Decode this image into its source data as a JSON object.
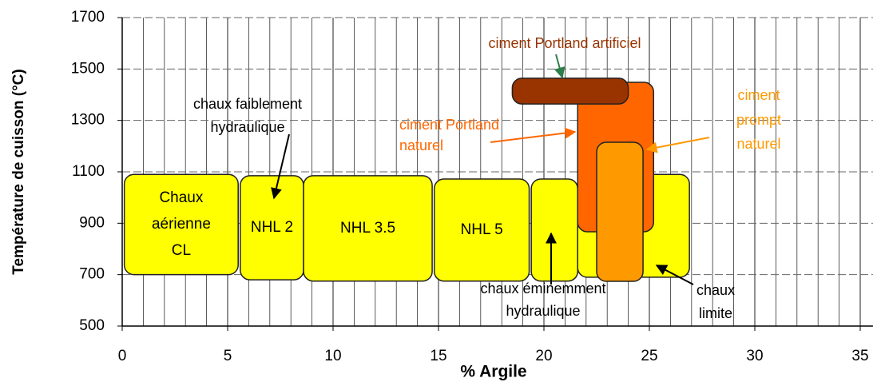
{
  "chart_data": {
    "type": "region",
    "xlabel": "% Argile",
    "ylabel": "Température de cuisson (°C)",
    "xlim": [
      0,
      35.6
    ],
    "ylim": [
      500,
      1700
    ],
    "xticks": [
      0,
      5,
      10,
      15,
      20,
      25,
      30,
      35
    ],
    "yticks": [
      500,
      700,
      900,
      1100,
      1300,
      1500,
      1700
    ],
    "xminorticks": [
      1,
      2,
      3,
      4,
      6,
      7,
      8,
      9,
      11,
      12,
      13,
      14,
      16,
      17,
      18,
      19,
      21,
      22,
      23,
      24,
      26,
      27,
      28,
      29,
      31,
      32,
      33,
      34
    ],
    "grid": true,
    "regions": [
      {
        "label": [
          "Chaux",
          "aérienne",
          "CL"
        ],
        "x": [
          0.1,
          5.5
        ],
        "y": [
          700,
          1090
        ],
        "color": "#ffff00"
      },
      {
        "label": [
          "NHL 2"
        ],
        "x": [
          5.6,
          8.6
        ],
        "y": [
          680,
          1085
        ],
        "color": "#ffff00"
      },
      {
        "label": [
          "NHL 3.5"
        ],
        "x": [
          8.6,
          14.7
        ],
        "y": [
          675,
          1085
        ],
        "color": "#ffff00"
      },
      {
        "label": [
          "NHL 5"
        ],
        "x": [
          14.8,
          19.3
        ],
        "y": [
          675,
          1072
        ],
        "color": "#ffff00"
      },
      {
        "label": [],
        "x": [
          19.4,
          21.6
        ],
        "y": [
          675,
          1072
        ],
        "color": "#ffff00"
      },
      {
        "label": [],
        "x": [
          21.6,
          26.9
        ],
        "y": [
          690,
          1090
        ],
        "color": "#ffff00"
      },
      {
        "label": [],
        "x": [
          21.6,
          25.2
        ],
        "y": [
          867,
          1448
        ],
        "color": "#ff6600"
      },
      {
        "label": [],
        "x": [
          22.5,
          24.7
        ],
        "y": [
          674,
          1215
        ],
        "color": "#ff9900"
      },
      {
        "label": [],
        "x": [
          18.5,
          24.0
        ],
        "y": [
          1364,
          1464
        ],
        "color": "#993300"
      }
    ],
    "annotations": [
      {
        "text": [
          "chaux faiblement",
          "hydraulique"
        ],
        "color": "#000000"
      },
      {
        "text": [
          "ciment Portland artificiel"
        ],
        "color": "#993300"
      },
      {
        "text": [
          "ciment Portland",
          "naturel"
        ],
        "color": "#ff6600"
      },
      {
        "text": [
          "ciment",
          "prompt",
          "naturel"
        ],
        "color": "#ff9900"
      },
      {
        "text": [
          "chaux éminemment",
          "hydraulique"
        ],
        "color": "#000000"
      },
      {
        "text": [
          "chaux",
          "limite"
        ],
        "color": "#000000"
      }
    ]
  }
}
